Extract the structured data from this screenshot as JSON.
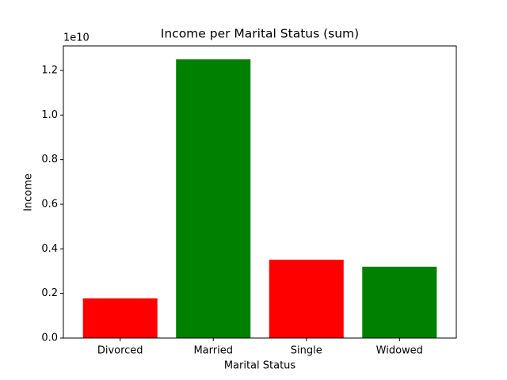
{
  "chart_data": {
    "type": "bar",
    "title": "Income per Marital Status (sum)",
    "x_label": "Marital Status",
    "y_label": "Income",
    "y_offset_label": "1e10",
    "categories": [
      "Divorced",
      "Married",
      "Single",
      "Widowed"
    ],
    "values": [
      1780000000,
      12500000000,
      3510000000,
      3200000000
    ],
    "colors": [
      "#ff0000",
      "#008000",
      "#ff0000",
      "#008000"
    ],
    "ylim": [
      0,
      13100000000
    ],
    "yticks": [
      {
        "value": 0,
        "label": "0.0"
      },
      {
        "value": 2000000000,
        "label": "0.2"
      },
      {
        "value": 4000000000,
        "label": "0.4"
      },
      {
        "value": 6000000000,
        "label": "0.6"
      },
      {
        "value": 8000000000,
        "label": "0.8"
      },
      {
        "value": 10000000000,
        "label": "1.0"
      },
      {
        "value": 12000000000,
        "label": "1.2"
      }
    ],
    "grid": false
  }
}
